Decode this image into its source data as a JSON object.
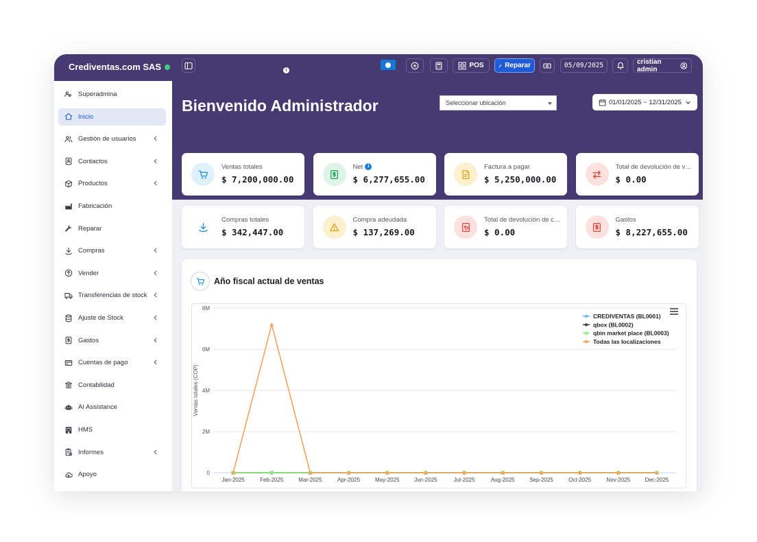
{
  "app": {
    "brand": "Crediventas.com SAS"
  },
  "topbar": {
    "pos_label": "POS",
    "repair_label": "Reparar",
    "date": "05/09/2025",
    "user": "cristian admin"
  },
  "sidebar": {
    "items": [
      {
        "label": "Superadmina",
        "icon": "users-cog-icon",
        "chevron": false
      },
      {
        "label": "Inicio",
        "icon": "home-icon",
        "chevron": false,
        "active": true
      },
      {
        "label": "Gestión de usuarios",
        "icon": "users-icon",
        "chevron": true
      },
      {
        "label": "Contactos",
        "icon": "address-book-icon",
        "chevron": true
      },
      {
        "label": "Productos",
        "icon": "cube-icon",
        "chevron": true
      },
      {
        "label": "Fabricación",
        "icon": "factory-icon",
        "chevron": false
      },
      {
        "label": "Reparar",
        "icon": "wrench-icon",
        "chevron": false
      },
      {
        "label": "Compras",
        "icon": "download-icon",
        "chevron": true
      },
      {
        "label": "Vender",
        "icon": "upload-icon",
        "chevron": true
      },
      {
        "label": "Transferencias de stock",
        "icon": "truck-icon",
        "chevron": true
      },
      {
        "label": "Ajuste de Stock",
        "icon": "database-icon",
        "chevron": true
      },
      {
        "label": "Gastos",
        "icon": "receipt-dollar-icon",
        "chevron": true
      },
      {
        "label": "Cuentas de pago",
        "icon": "credit-card-icon",
        "chevron": true
      },
      {
        "label": "Contabilidad",
        "icon": "bank-icon",
        "chevron": false
      },
      {
        "label": "AI Assistance",
        "icon": "robot-icon",
        "chevron": false
      },
      {
        "label": "HMS",
        "icon": "hotel-icon",
        "chevron": false
      },
      {
        "label": "Informes",
        "icon": "report-icon",
        "chevron": true
      },
      {
        "label": "Apoyo",
        "icon": "cloud-icon",
        "chevron": false
      }
    ]
  },
  "header": {
    "welcome": "Bienvenido Administrador",
    "location_placeholder": "Seleccionar ubicación",
    "date_range": "01/01/2025 ~ 12/31/2025"
  },
  "stats": [
    {
      "label": "Ventas totales",
      "value": "$ 7,200,000.00",
      "icon": "cart-icon",
      "color": "#1c8fd6",
      "bg": "#dff1fb"
    },
    {
      "label": "Net",
      "value": "$ 6,277,655.00",
      "icon": "dollar-receipt-icon",
      "color": "#22a25a",
      "bg": "#dcf5e6",
      "info": true
    },
    {
      "label": "Factura a pagar",
      "value": "$ 5,250,000.00",
      "icon": "invoice-icon",
      "color": "#e2a40f",
      "bg": "#fdf0cf"
    },
    {
      "label": "Total de devolución de venta",
      "value": "$ 0.00",
      "icon": "exchange-icon",
      "color": "#e2463d",
      "bg": "#fde1df"
    },
    {
      "label": "Compras totales",
      "value": "$ 342,447.00",
      "icon": "download-icon",
      "color": "#1c8fd6",
      "bg": "#ffffff"
    },
    {
      "label": "Compra adeudada",
      "value": "$ 137,269.00",
      "icon": "warning-icon",
      "color": "#e2a40f",
      "bg": "#fdf0cf"
    },
    {
      "label": "Total de devolución de compra",
      "value": "$ 0.00",
      "icon": "return-doc-icon",
      "color": "#e2463d",
      "bg": "#fde1df"
    },
    {
      "label": "Gastos",
      "value": "$ 8,227,655.00",
      "icon": "expense-icon",
      "color": "#e2463d",
      "bg": "#fde1df"
    }
  ],
  "sales_chart_title": "Año fiscal actual de ventas",
  "chart_data": {
    "type": "line",
    "categories": [
      "Jan-2025",
      "Feb-2025",
      "Mar-2025",
      "Apr-2025",
      "May-2025",
      "Jun-2025",
      "Jul-2025",
      "Aug-2025",
      "Sep-2025",
      "Oct-2025",
      "Nov-2025",
      "Dec-2025"
    ],
    "ylabel": "Ventas totales (COP)",
    "ylim": [
      0,
      8000000
    ],
    "yticks": [
      "0",
      "2M",
      "4M",
      "6M",
      "8M"
    ],
    "legend_position": "top-right",
    "series": [
      {
        "name": "CREDIVENTAS (BL0001)",
        "color": "#7cb5ec",
        "values": [
          0,
          0,
          0,
          0,
          0,
          0,
          0,
          0,
          0,
          0,
          0,
          0
        ]
      },
      {
        "name": "qbox (BL0002)",
        "color": "#434348",
        "values": [
          0,
          0,
          0,
          0,
          0,
          0,
          0,
          0,
          0,
          0,
          0,
          0
        ]
      },
      {
        "name": "qbin market place (BL0003)",
        "color": "#90ed7d",
        "values": [
          0,
          0,
          0,
          0,
          0,
          0,
          0,
          0,
          0,
          0,
          0,
          0
        ]
      },
      {
        "name": "Todas las localizaciones",
        "color": "#f7a35c",
        "values": [
          0,
          7200000,
          0,
          0,
          0,
          0,
          0,
          0,
          0,
          0,
          0,
          0
        ]
      }
    ]
  }
}
